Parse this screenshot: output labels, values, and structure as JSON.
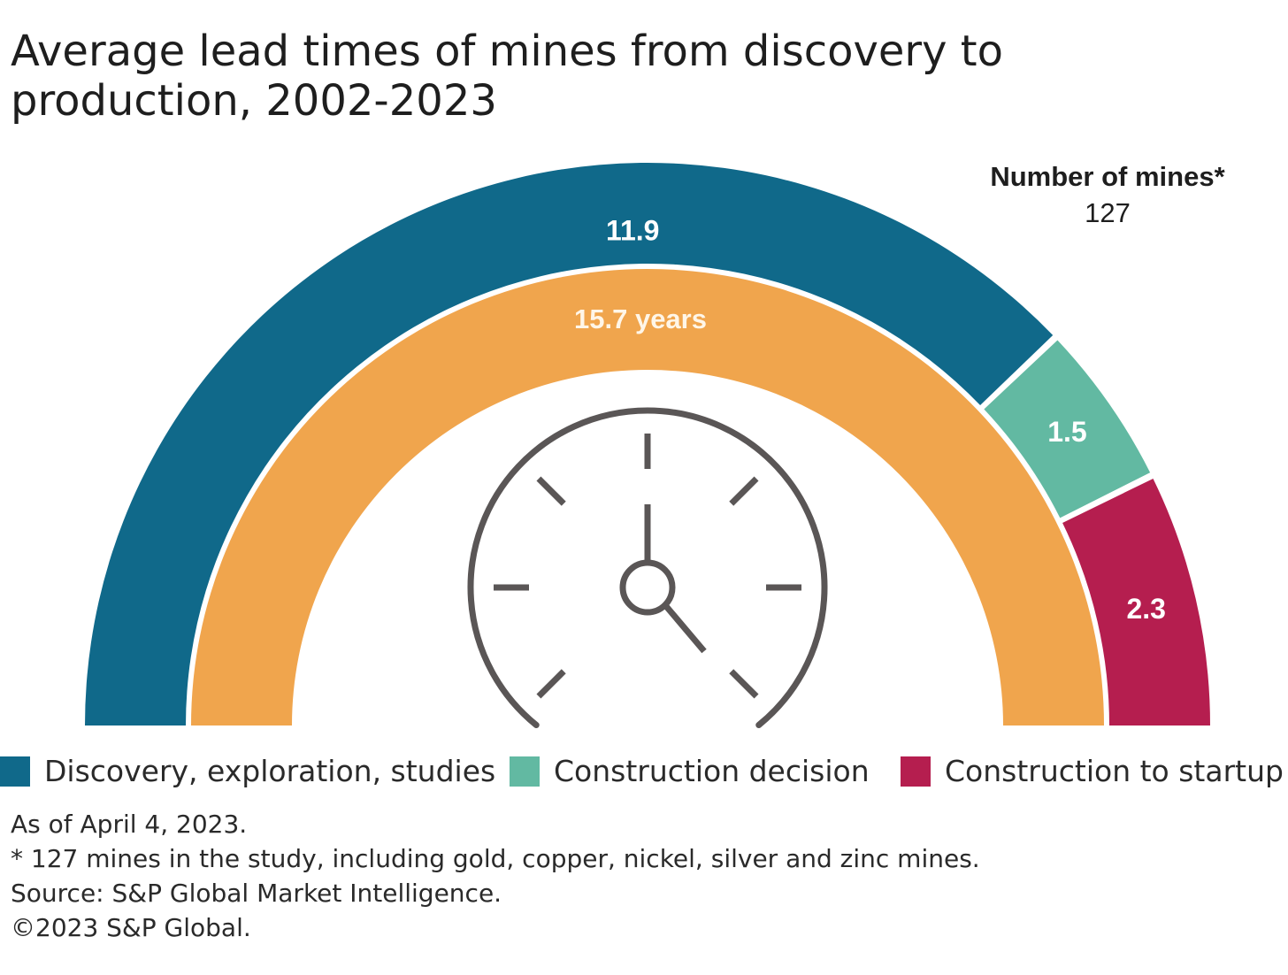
{
  "chart_data": {
    "type": "gauge",
    "title": "Average lead times of mines from discovery to production, 2002-2023",
    "units": "years",
    "total": {
      "value": 15.7,
      "label": "15.7 years"
    },
    "segments": [
      {
        "name": "Discovery, exploration, studies",
        "value": 11.9,
        "label": "11.9",
        "color": "#10698a"
      },
      {
        "name": "Construction decision",
        "value": 1.5,
        "label": "1.5",
        "color": "#62b9a2"
      },
      {
        "name": "Construction to startup",
        "value": 2.3,
        "label": "2.3",
        "color": "#b51e4f"
      }
    ],
    "total_color": "#f0a54d",
    "mines_count": {
      "label": "Number of mines*",
      "value": "127"
    },
    "legend": [
      {
        "label": "Discovery, exploration, studies",
        "color": "#10698a"
      },
      {
        "label": "Construction decision",
        "color": "#62b9a2"
      },
      {
        "label": "Construction to startup",
        "color": "#b51e4f"
      }
    ],
    "icon": "clock-icon"
  },
  "footnotes": {
    "as_of": "As of April 4, 2023.",
    "note": "* 127 mines in the study, including gold, copper, nickel, silver and zinc mines.",
    "source": "Source: S&P Global Market Intelligence.",
    "copyright": "©2023 S&P Global."
  }
}
